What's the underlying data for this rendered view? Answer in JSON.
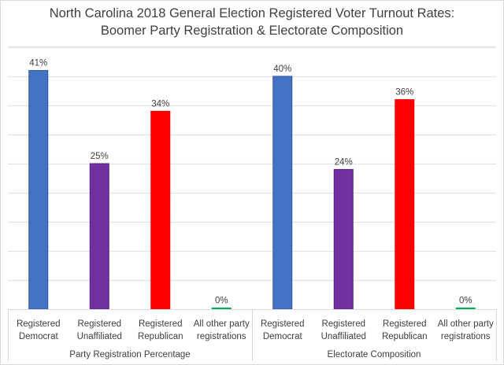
{
  "chart_data": {
    "type": "bar",
    "title": "North Carolina 2018 General Election Registered Voter Turnout Rates:",
    "subtitle": "Boomer Party Registration & Electorate Composition",
    "xlabel": "",
    "ylabel": "",
    "ylim": [
      0,
      45
    ],
    "y_tick_step": 5,
    "y_tick_labels_visible": false,
    "grid": true,
    "legend": "none",
    "value_format": "percent",
    "groups": [
      {
        "name": "Party Registration Percentage",
        "categories": [
          "Registered Democrat",
          "Registered Unaffiliated",
          "Registered Republican",
          "All other party registrations"
        ],
        "category_lines": [
          [
            "Registered",
            "Democrat"
          ],
          [
            "Registered",
            "Unaffiliated"
          ],
          [
            "Registered",
            "Republican"
          ],
          [
            "All other party",
            "registrations"
          ]
        ],
        "values": [
          41,
          25,
          34,
          0
        ],
        "labels": [
          "41%",
          "25%",
          "34%",
          "0%"
        ]
      },
      {
        "name": "Electorate Composition",
        "categories": [
          "Registered Democrat",
          "Registered Unaffiliated",
          "Registered Republican",
          "All other party registrations"
        ],
        "category_lines": [
          [
            "Registered",
            "Democrat"
          ],
          [
            "Registered",
            "Unaffiliated"
          ],
          [
            "Registered",
            "Republican"
          ],
          [
            "All other party",
            "registrations"
          ]
        ],
        "values": [
          40,
          24,
          36,
          0
        ],
        "labels": [
          "40%",
          "24%",
          "36%",
          "0%"
        ]
      }
    ],
    "colors": [
      "#4472C4",
      "#7030A0",
      "#FF0000",
      "#00B050"
    ],
    "border_colors": [
      "#2F5597",
      "#5B2083",
      "#FF0000",
      "#00B050"
    ]
  }
}
